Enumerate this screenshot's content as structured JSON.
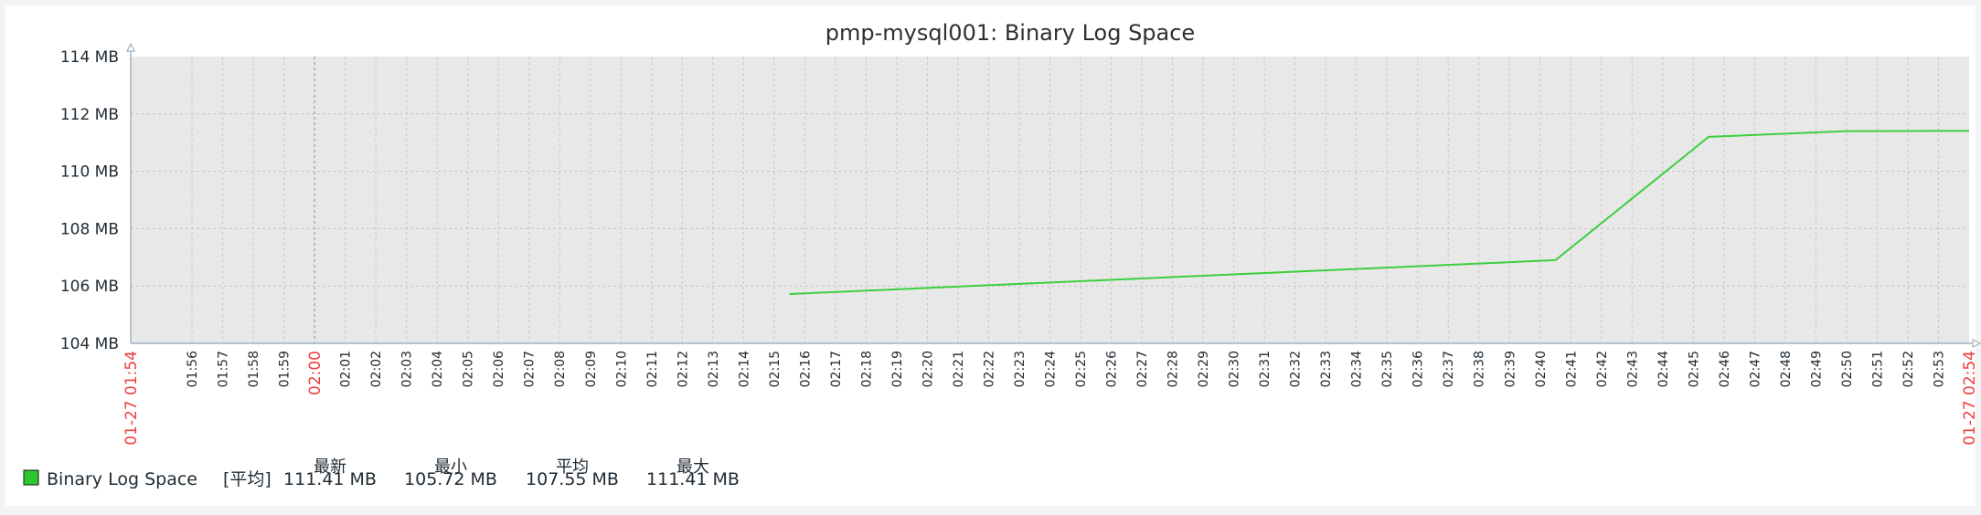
{
  "chart_data": {
    "type": "line",
    "title": "pmp-mysql001: Binary Log Space",
    "y_unit": "MB",
    "ylim": [
      104,
      114
    ],
    "y_ticks": [
      "104 MB",
      "106 MB",
      "108 MB",
      "110 MB",
      "112 MB",
      "114 MB"
    ],
    "x_range": [
      "01:54",
      "02:54"
    ],
    "x_major_labels": [
      "01-27 01:54",
      "02:00",
      "01-27 02:54"
    ],
    "x_tick_labels": [
      "01:56",
      "01:57",
      "01:58",
      "01:59",
      "02:01",
      "02:02",
      "02:03",
      "02:04",
      "02:05",
      "02:06",
      "02:07",
      "02:08",
      "02:09",
      "02:10",
      "02:11",
      "02:12",
      "02:13",
      "02:14",
      "02:15",
      "02:16",
      "02:17",
      "02:18",
      "02:19",
      "02:20",
      "02:21",
      "02:22",
      "02:23",
      "02:24",
      "02:25",
      "02:26",
      "02:27",
      "02:28",
      "02:29",
      "02:30",
      "02:31",
      "02:32",
      "02:33",
      "02:34",
      "02:35",
      "02:36",
      "02:37",
      "02:38",
      "02:39",
      "02:40",
      "02:41",
      "02:42",
      "02:43",
      "02:44",
      "02:45",
      "02:46",
      "02:47",
      "02:48",
      "02:49",
      "02:50",
      "02:51",
      "02:52",
      "02:53"
    ],
    "grid": true,
    "series": [
      {
        "name": "Binary Log Space",
        "color": "#3ccf3c",
        "points": [
          {
            "x": "02:15:30",
            "y": 105.72
          },
          {
            "x": "02:40:30",
            "y": 106.9
          },
          {
            "x": "02:45:30",
            "y": 111.2
          },
          {
            "x": "02:50:00",
            "y": 111.4
          },
          {
            "x": "02:54:00",
            "y": 111.41
          }
        ]
      }
    ],
    "legend": {
      "position": "bottom-left",
      "entries": [
        {
          "name": "Binary Log Space",
          "color": "#2ec72e",
          "tag": "[平均]",
          "columns": [
            {
              "header": "最新",
              "value": "111.41 MB"
            },
            {
              "header": "最小",
              "value": "105.72 MB"
            },
            {
              "header": "平均",
              "value": "107.55 MB"
            },
            {
              "header": "最大",
              "value": "111.41 MB"
            }
          ]
        }
      ]
    }
  }
}
